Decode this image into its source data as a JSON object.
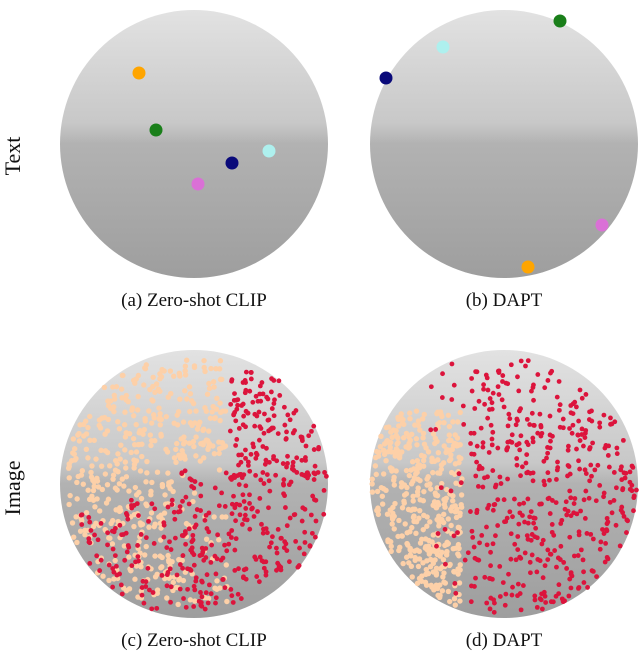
{
  "row_labels": {
    "top": "Text",
    "bottom": "Image"
  },
  "captions": {
    "a": "(a) Zero-shot CLIP",
    "b": "(b) DAPT",
    "c": "(c) Zero-shot CLIP",
    "d": "(d) DAPT"
  },
  "colors": {
    "sphere_light": "#dcdcdc",
    "sphere_dark": "#a6a6a6",
    "peach": "#fdd0a8",
    "crimson": "#dc143c",
    "orange": "#ffa500",
    "green": "#1a7f1a",
    "navy": "#0a0a7a",
    "lightcyan": "#aef0ee",
    "orchid": "#da70d6"
  },
  "text_points": {
    "a": [
      {
        "color": "orange"
      },
      {
        "color": "green"
      },
      {
        "color": "navy"
      },
      {
        "color": "lightcyan"
      },
      {
        "color": "orchid"
      }
    ],
    "b": [
      {
        "color": "green"
      },
      {
        "color": "lightcyan"
      },
      {
        "color": "navy"
      },
      {
        "color": "orchid"
      },
      {
        "color": "orange"
      }
    ]
  },
  "image_points": {
    "c": {
      "classes": [
        "peach",
        "crimson"
      ]
    },
    "d": {
      "classes": [
        "peach",
        "crimson"
      ]
    }
  }
}
